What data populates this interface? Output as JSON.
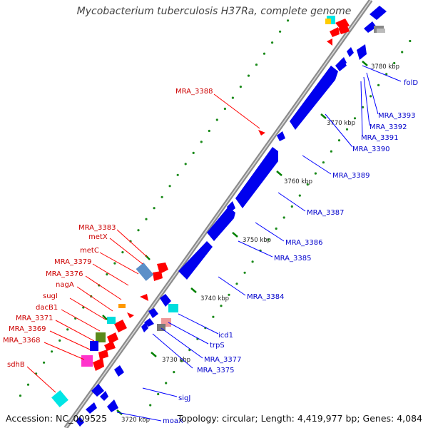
{
  "title": "Mycobacterium tuberculosis H37Ra, complete genome",
  "footer": {
    "accession": "Accession: NC_009525",
    "summary": "Topology: circular; Length: 4,419,977 bp; Genes: 4,084"
  },
  "colors": {
    "forward_gene": "#ff0000",
    "reverse_gene": "#0000ff",
    "forward_label": "#cc0000",
    "reverse_label": "#0000cc",
    "backbone": "#999999",
    "tick": "#008000"
  },
  "scale_labels": [
    "3720 kbp",
    "3730 kbp",
    "3740 kbp",
    "3750 kbp",
    "3760 kbp",
    "3770 kbp",
    "3780 kbp"
  ],
  "forward_labels": [
    "MRA_3388",
    "MRA_3383",
    "metX",
    "metC",
    "MRA_3379",
    "MRA_3376",
    "nagA",
    "sugI",
    "dacB1",
    "MRA_3371",
    "MRA_3369",
    "MRA_3368",
    "sdhB"
  ],
  "reverse_labels": [
    "folD",
    "MRA_3393",
    "MRA_3392",
    "MRA_3391",
    "MRA_3390",
    "MRA_3389",
    "MRA_3387",
    "MRA_3386",
    "MRA_3385",
    "MRA_3384",
    "icd1",
    "trpS",
    "MRA_3377",
    "MRA_3375",
    "sigJ",
    "moaX"
  ]
}
